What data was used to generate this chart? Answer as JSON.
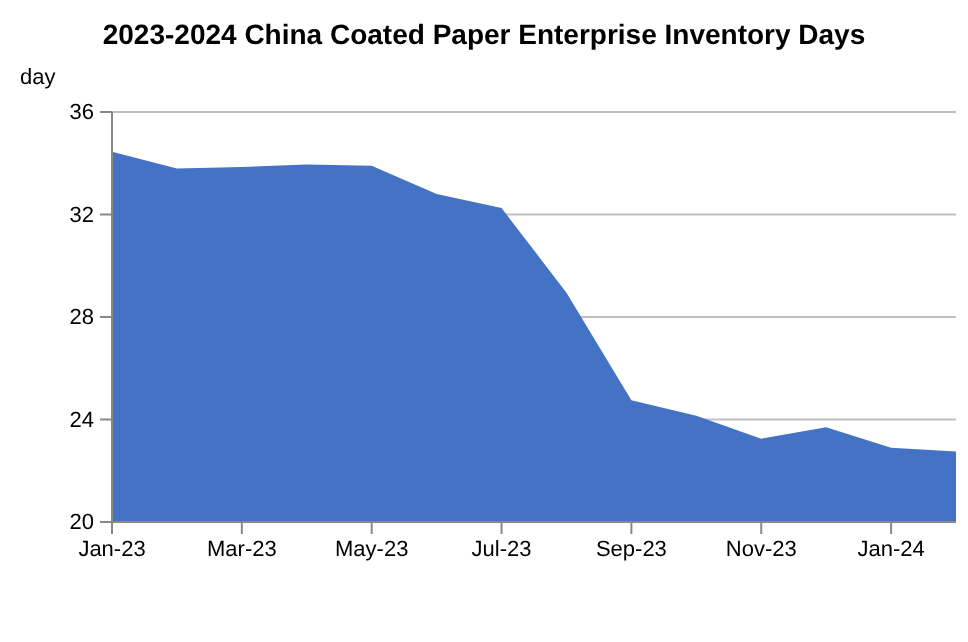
{
  "chart_data": {
    "type": "area",
    "title": "2023-2024 China Coated Paper Enterprise Inventory Days",
    "ylabel": "day",
    "categories": [
      "Jan-23",
      null,
      "Mar-23",
      null,
      "May-23",
      null,
      "Jul-23",
      null,
      "Sep-23",
      null,
      "Nov-23",
      null,
      "Jan-24",
      null
    ],
    "values": [
      34.45,
      33.8,
      33.85,
      33.95,
      33.9,
      32.8,
      32.25,
      28.95,
      24.75,
      24.15,
      23.25,
      23.7,
      22.9,
      22.75
    ],
    "color": "#4472c4",
    "ylim": [
      20,
      36
    ],
    "yticks": [
      20,
      24,
      28,
      32,
      36
    ],
    "grid": "y"
  }
}
